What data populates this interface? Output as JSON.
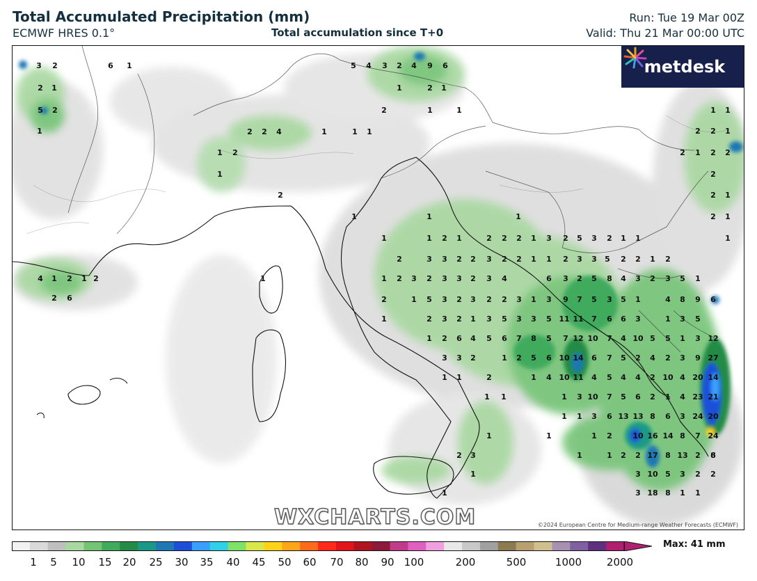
{
  "header": {
    "title": "Total Accumulated Precipitation (mm)",
    "model": "ECMWF HRES 0.1°",
    "subtitle": "Total accumulation since T+0",
    "run": "Run: Tue 19 Mar 00Z",
    "valid": "Valid: Thu 21 Mar 00:00 UTC"
  },
  "logo": {
    "text": "metdesk",
    "icon": "metdesk-star-icon"
  },
  "watermark": "WXCHARTS.COM",
  "copyright": "©2024 European Centre for Medium-range Weather Forecasts (ECMWF)",
  "legend": {
    "ticks": [
      "1",
      "5",
      "10",
      "15",
      "20",
      "25",
      "30",
      "35",
      "40",
      "45",
      "50",
      "60",
      "70",
      "80",
      "90",
      "100",
      "200",
      "500",
      "1000",
      "2000"
    ],
    "max_label": "Max: 41 mm",
    "colors": [
      "#f2f2f2",
      "#d9d9d9",
      "#bfbfbf",
      "#a8d8a0",
      "#74c476",
      "#41ab5d",
      "#238b45",
      "#1a9a86",
      "#1f78b4",
      "#1f4fd8",
      "#3aa0ff",
      "#2fd0e8",
      "#7fe06a",
      "#d8e84a",
      "#ffd21a",
      "#ffa51a",
      "#ff6a1a",
      "#ff2a1a",
      "#e0141a",
      "#b01420",
      "#8b1a3a",
      "#c23a8a",
      "#e060c0",
      "#f0a0e0",
      "#e8e8e8",
      "#c8c8c8",
      "#a0a0a0",
      "#8c7a50",
      "#b8a070",
      "#d0c090",
      "#a890b0",
      "#8060a0",
      "#603080",
      "#b02070"
    ]
  },
  "map_values": [
    {
      "t": "3"
    },
    {
      "t": "2"
    },
    {
      "t": "1"
    },
    {
      "t": "6"
    },
    {
      "t": "2"
    },
    {
      "t": "1"
    },
    {
      "t": "5"
    },
    {
      "t": "2"
    },
    {
      "t": "1"
    },
    {
      "t": "5"
    },
    {
      "t": "4"
    },
    {
      "t": "3"
    },
    {
      "t": "2"
    },
    {
      "t": "4"
    },
    {
      "t": "9"
    },
    {
      "t": "6"
    },
    {
      "t": "1"
    },
    {
      "t": "2"
    },
    {
      "t": "1"
    },
    {
      "t": "2"
    },
    {
      "t": "1"
    },
    {
      "t": "1"
    },
    {
      "t": "2"
    },
    {
      "t": "2"
    },
    {
      "t": "4"
    },
    {
      "t": "1"
    },
    {
      "t": "1"
    },
    {
      "t": "1"
    },
    {
      "t": "1"
    },
    {
      "t": "2"
    },
    {
      "t": "1"
    },
    {
      "t": "2"
    },
    {
      "t": "1"
    },
    {
      "t": "1"
    },
    {
      "t": "1"
    },
    {
      "t": "1"
    },
    {
      "t": "1"
    },
    {
      "t": "2"
    },
    {
      "t": "1"
    },
    {
      "t": "2"
    },
    {
      "t": "2"
    },
    {
      "t": "2"
    },
    {
      "t": "1"
    },
    {
      "t": "3"
    },
    {
      "t": "2"
    },
    {
      "t": "5"
    },
    {
      "t": "3"
    },
    {
      "t": "2"
    },
    {
      "t": "1"
    },
    {
      "t": "1"
    },
    {
      "t": "2"
    },
    {
      "t": "3"
    },
    {
      "t": "3"
    },
    {
      "t": "2"
    },
    {
      "t": "2"
    },
    {
      "t": "3"
    },
    {
      "t": "2"
    },
    {
      "t": "2"
    },
    {
      "t": "1"
    },
    {
      "t": "1"
    },
    {
      "t": "2"
    },
    {
      "t": "3"
    },
    {
      "t": "3"
    },
    {
      "t": "5"
    },
    {
      "t": "2"
    },
    {
      "t": "2"
    },
    {
      "t": "1"
    },
    {
      "t": "2"
    },
    {
      "t": "1"
    },
    {
      "t": "2"
    },
    {
      "t": "3"
    },
    {
      "t": "2"
    },
    {
      "t": "3"
    },
    {
      "t": "3"
    },
    {
      "t": "2"
    },
    {
      "t": "3"
    },
    {
      "t": "4"
    },
    {
      "t": "6"
    },
    {
      "t": "3"
    },
    {
      "t": "2"
    },
    {
      "t": "5"
    },
    {
      "t": "8"
    },
    {
      "t": "4"
    },
    {
      "t": "3"
    },
    {
      "t": "2"
    },
    {
      "t": "3"
    },
    {
      "t": "5"
    },
    {
      "t": "1"
    },
    {
      "t": "2"
    },
    {
      "t": "1"
    },
    {
      "t": "5"
    },
    {
      "t": "3"
    },
    {
      "t": "2"
    },
    {
      "t": "3"
    },
    {
      "t": "2"
    },
    {
      "t": "2"
    },
    {
      "t": "3"
    },
    {
      "t": "1"
    },
    {
      "t": "3"
    },
    {
      "t": "9"
    },
    {
      "t": "7"
    },
    {
      "t": "5"
    },
    {
      "t": "3"
    },
    {
      "t": "5"
    },
    {
      "t": "1"
    },
    {
      "t": "4"
    },
    {
      "t": "8"
    },
    {
      "t": "9"
    },
    {
      "t": "6"
    },
    {
      "t": "1"
    },
    {
      "t": "2"
    },
    {
      "t": "3"
    },
    {
      "t": "2"
    },
    {
      "t": "1"
    },
    {
      "t": "3"
    },
    {
      "t": "5"
    },
    {
      "t": "3"
    },
    {
      "t": "3"
    },
    {
      "t": "5"
    },
    {
      "t": "11"
    },
    {
      "t": "11"
    },
    {
      "t": "7"
    },
    {
      "t": "6"
    },
    {
      "t": "6"
    },
    {
      "t": "3"
    },
    {
      "t": "1"
    },
    {
      "t": "3"
    },
    {
      "t": "5"
    },
    {
      "t": "1"
    },
    {
      "t": "2"
    },
    {
      "t": "6"
    },
    {
      "t": "4"
    },
    {
      "t": "5"
    },
    {
      "t": "6"
    },
    {
      "t": "7"
    },
    {
      "t": "8"
    },
    {
      "t": "5"
    },
    {
      "t": "7"
    },
    {
      "t": "12"
    },
    {
      "t": "10"
    },
    {
      "t": "7"
    },
    {
      "t": "4"
    },
    {
      "t": "10"
    },
    {
      "t": "5"
    },
    {
      "t": "5"
    },
    {
      "t": "1"
    },
    {
      "t": "3"
    },
    {
      "t": "12"
    },
    {
      "t": "3"
    },
    {
      "t": "3"
    },
    {
      "t": "2"
    },
    {
      "t": "1"
    },
    {
      "t": "2"
    },
    {
      "t": "5"
    },
    {
      "t": "6"
    },
    {
      "t": "10"
    },
    {
      "t": "14"
    },
    {
      "t": "6"
    },
    {
      "t": "7"
    },
    {
      "t": "5"
    },
    {
      "t": "2"
    },
    {
      "t": "4"
    },
    {
      "t": "2"
    },
    {
      "t": "3"
    },
    {
      "t": "9"
    },
    {
      "t": "27"
    },
    {
      "t": "1"
    },
    {
      "t": "1"
    },
    {
      "t": "2"
    },
    {
      "t": "1"
    },
    {
      "t": "4"
    },
    {
      "t": "10"
    },
    {
      "t": "11"
    },
    {
      "t": "4"
    },
    {
      "t": "5"
    },
    {
      "t": "4"
    },
    {
      "t": "4"
    },
    {
      "t": "2"
    },
    {
      "t": "10"
    },
    {
      "t": "4"
    },
    {
      "t": "20"
    },
    {
      "t": "14"
    },
    {
      "t": "1"
    },
    {
      "t": "1"
    },
    {
      "t": "1"
    },
    {
      "t": "3"
    },
    {
      "t": "10"
    },
    {
      "t": "7"
    },
    {
      "t": "5"
    },
    {
      "t": "6"
    },
    {
      "t": "2"
    },
    {
      "t": "1"
    },
    {
      "t": "4"
    },
    {
      "t": "23"
    },
    {
      "t": "21"
    },
    {
      "t": "1"
    },
    {
      "t": "1"
    },
    {
      "t": "3"
    },
    {
      "t": "6"
    },
    {
      "t": "13"
    },
    {
      "t": "13"
    },
    {
      "t": "8"
    },
    {
      "t": "6"
    },
    {
      "t": "3"
    },
    {
      "t": "24"
    },
    {
      "t": "20"
    },
    {
      "t": "1"
    },
    {
      "t": "1"
    },
    {
      "t": "1"
    },
    {
      "t": "2"
    },
    {
      "t": "10"
    },
    {
      "t": "16"
    },
    {
      "t": "14"
    },
    {
      "t": "8"
    },
    {
      "t": "7"
    },
    {
      "t": "24"
    },
    {
      "t": "1"
    },
    {
      "t": "1"
    },
    {
      "t": "2"
    },
    {
      "t": "2"
    },
    {
      "t": "17"
    },
    {
      "t": "8"
    },
    {
      "t": "13"
    },
    {
      "t": "2"
    },
    {
      "t": "8"
    },
    {
      "t": "6"
    },
    {
      "t": "2"
    },
    {
      "t": "3"
    },
    {
      "t": "1"
    },
    {
      "t": "3"
    },
    {
      "t": "10"
    },
    {
      "t": "5"
    },
    {
      "t": "3"
    },
    {
      "t": "2"
    },
    {
      "t": "2"
    },
    {
      "t": "1"
    },
    {
      "t": "3"
    },
    {
      "t": "18"
    },
    {
      "t": "8"
    },
    {
      "t": "1"
    },
    {
      "t": "1"
    },
    {
      "t": "1"
    },
    {
      "t": "2"
    },
    {
      "t": "2"
    },
    {
      "t": "2"
    },
    {
      "t": "1"
    },
    {
      "t": "2"
    },
    {
      "t": "2"
    },
    {
      "t": "2"
    },
    {
      "t": "2"
    },
    {
      "t": "1"
    },
    {
      "t": "2"
    },
    {
      "t": "4"
    },
    {
      "t": "1"
    },
    {
      "t": "2"
    },
    {
      "t": "1"
    },
    {
      "t": "2"
    },
    {
      "t": "6"
    },
    {
      "t": "1"
    },
    {
      "t": "2"
    },
    {
      "t": "1"
    },
    {
      "t": "1"
    },
    {
      "t": "1"
    },
    {
      "t": "1"
    }
  ]
}
